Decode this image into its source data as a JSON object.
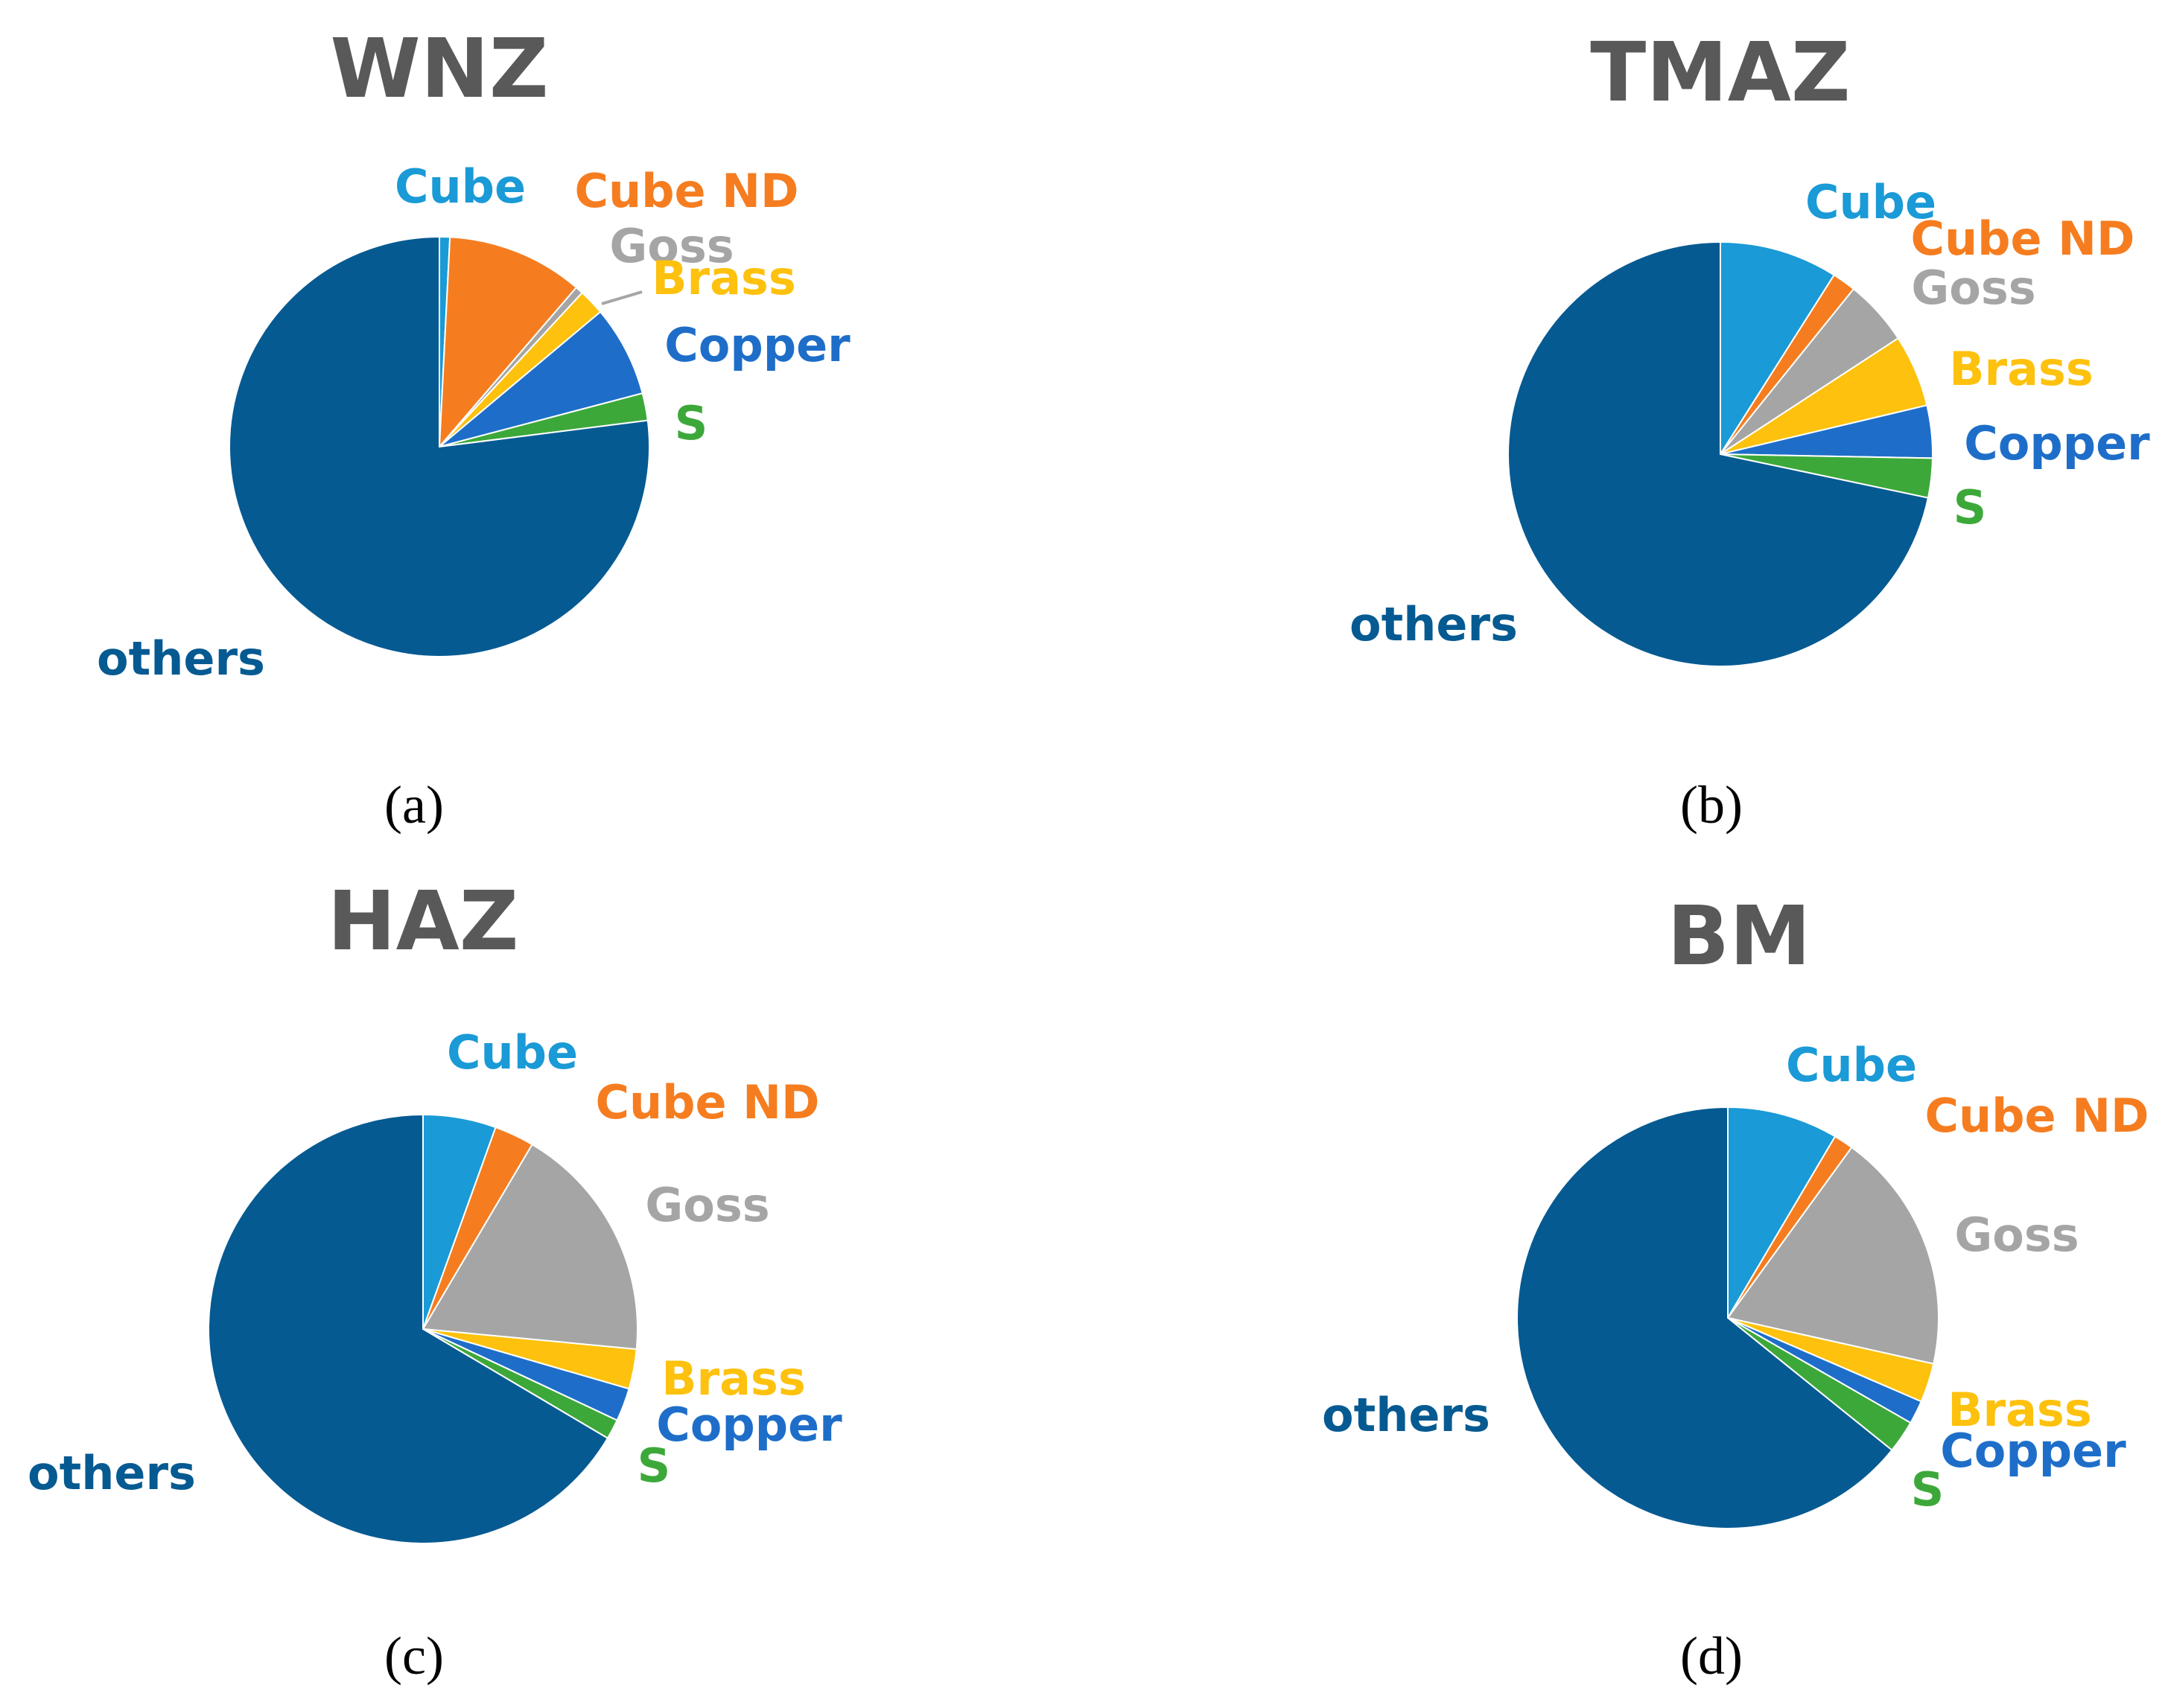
{
  "colors": {
    "Cube": "#1a9ad6",
    "Cube ND": "#f57d20",
    "Goss": "#a5a5a5",
    "Brass": "#fdc10e",
    "Copper": "#1e6ec9",
    "S": "#3da83a",
    "others": "#065a92",
    "title": "#595959"
  },
  "chart_data": [
    {
      "type": "pie",
      "title": "WNZ",
      "panel_label": "(a)",
      "categories": [
        "Cube",
        "Cube ND",
        "Goss",
        "Brass",
        "Copper",
        "S",
        "others"
      ],
      "values": [
        0.8,
        10.5,
        0.6,
        2.0,
        7.0,
        2.1,
        77.0
      ]
    },
    {
      "type": "pie",
      "title": "TMAZ",
      "panel_label": "(b)",
      "categories": [
        "Cube",
        "Cube ND",
        "Goss",
        "Brass",
        "Copper",
        "S",
        "others"
      ],
      "values": [
        9.0,
        1.8,
        5.0,
        5.5,
        4.0,
        3.0,
        71.7
      ]
    },
    {
      "type": "pie",
      "title": "HAZ",
      "panel_label": "(c)",
      "categories": [
        "Cube",
        "Cube ND",
        "Goss",
        "Brass",
        "Copper",
        "S",
        "others"
      ],
      "values": [
        5.5,
        3.0,
        18.0,
        3.0,
        2.5,
        1.5,
        66.5
      ]
    },
    {
      "type": "pie",
      "title": "BM",
      "panel_label": "(d)",
      "categories": [
        "Cube",
        "Cube ND",
        "Goss",
        "Brass",
        "Copper",
        "S",
        "others"
      ],
      "values": [
        8.5,
        1.5,
        18.5,
        3.0,
        1.8,
        2.5,
        64.2
      ]
    }
  ]
}
